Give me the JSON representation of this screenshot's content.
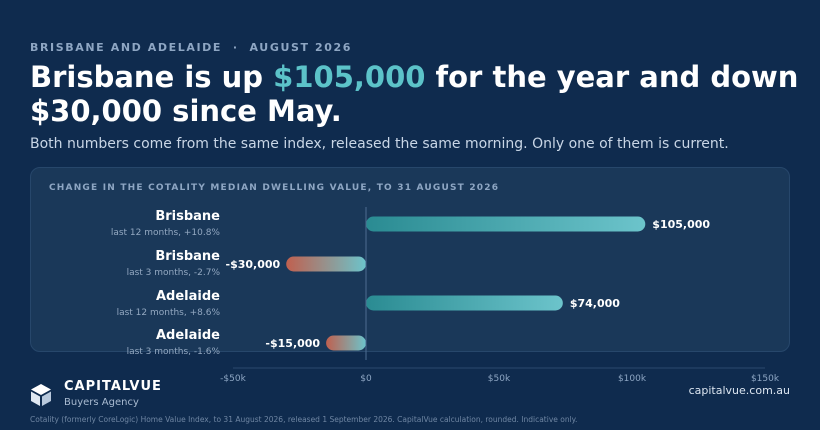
{
  "header": {
    "eyebrow": "BRISBANE AND ADELAIDE  ·  AUGUST 2026",
    "headline_part1": "Brisbane is up ",
    "headline_highlight": "$105,000",
    "headline_part2": " for the year and down $30,000 since May.",
    "subhead": "Both numbers come from the same index, released the same morning. Only one of them is current."
  },
  "chart_data": {
    "type": "bar",
    "orientation": "horizontal",
    "title": "CHANGE IN THE COTALITY MEDIAN DWELLING VALUE, TO 31 AUGUST 2026",
    "categories": [
      {
        "name": "Brisbane",
        "period": "last 12 months, +10.8%"
      },
      {
        "name": "Brisbane",
        "period": "last 3 months, -2.7%"
      },
      {
        "name": "Adelaide",
        "period": "last 12 months, +8.6%"
      },
      {
        "name": "Adelaide",
        "period": "last 3 months, -1.6%"
      }
    ],
    "values": [
      105000,
      -30000,
      74000,
      -15000
    ],
    "value_labels": [
      "$105,000",
      "-$30,000",
      "$74,000",
      "-$15,000"
    ],
    "xlim": [
      -50000,
      150000
    ],
    "x_ticks": [
      -50000,
      0,
      50000,
      100000,
      150000
    ],
    "x_tick_labels": [
      "-$50k",
      "$0",
      "$50k",
      "$100k",
      "$150k"
    ],
    "grid": false,
    "colors": {
      "positive_start": "#2a8b92",
      "positive_end": "#6cc4cb",
      "negative_start": "#c0604f",
      "negative_end": "#6cc4cb",
      "zero_line": "#4e6d91",
      "tick_label": "#8ea6c3"
    }
  },
  "footer": {
    "brand_name": "CAPITALVUE",
    "brand_tagline": "Buyers Agency",
    "website": "capitalvue.com.au",
    "source_note": "Cotality (formerly CoreLogic) Home Value Index, to 31 August 2026, released 1 September 2026. CapitalVue calculation, rounded. Indicative only."
  },
  "icons": {
    "logo": "capitalvue-cube-logo"
  }
}
